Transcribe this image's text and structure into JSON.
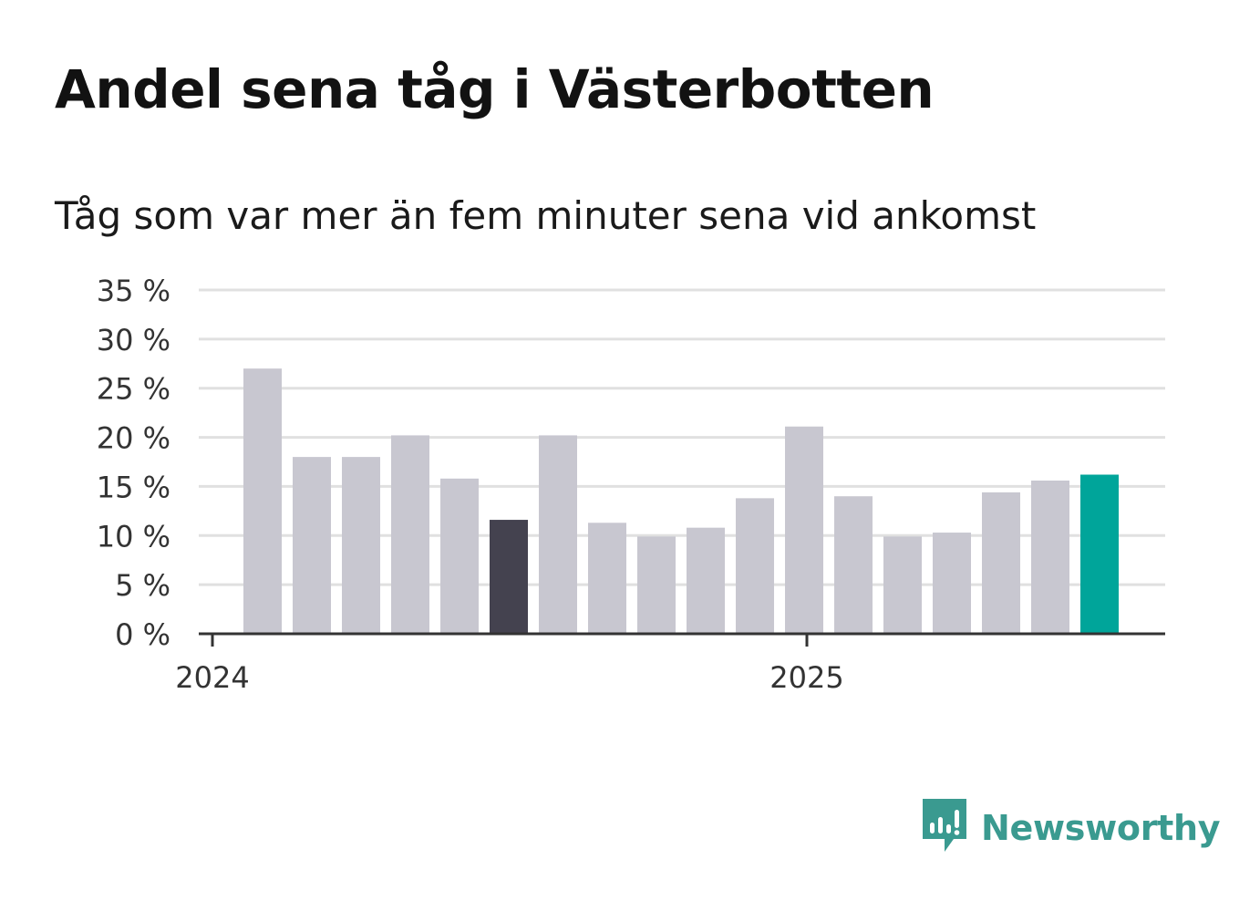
{
  "title": "Andel sena tåg i Västerbotten",
  "subtitle": "Tåg som var mer än fem minuter sena vid ankomst",
  "brand": {
    "name": "Newsworthy",
    "icon": "newsworthy-logo-icon",
    "color": "#3a9a90"
  },
  "chart_data": {
    "type": "bar",
    "ylim": [
      0,
      35
    ],
    "ytick_values": [
      0,
      5,
      10,
      15,
      20,
      25,
      30,
      35
    ],
    "ytick_labels": [
      "0 %",
      "5 %",
      "10 %",
      "15 %",
      "20 %",
      "25 %",
      "30 %",
      "35 %"
    ],
    "xtick_labels": [
      "2024",
      "2025"
    ],
    "grid": true,
    "colors": {
      "default": "#c8c7d0",
      "highlight": "#44424f",
      "latest": "#00a59a",
      "grid": "#e0e0e0",
      "axis": "#333333"
    },
    "values": [
      27,
      18,
      18,
      20.2,
      15.8,
      11.6,
      20.2,
      11.3,
      9.9,
      10.8,
      13.8,
      21.1,
      14,
      9.9,
      10.3,
      14.4,
      15.6,
      16.2
    ],
    "highlight_index": 5,
    "latest_index": 17
  }
}
